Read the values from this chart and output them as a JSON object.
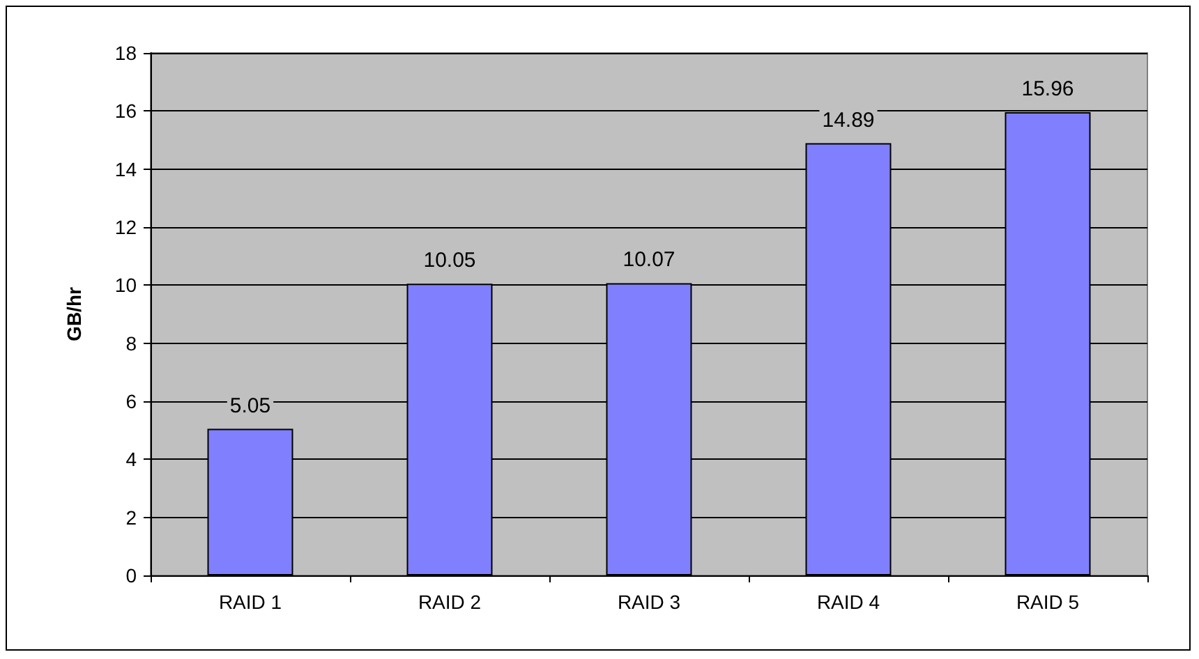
{
  "chart_data": {
    "type": "bar",
    "ylabel": "GB/hr",
    "categories": [
      "RAID 1",
      "RAID 2",
      "RAID 3",
      "RAID 4",
      "RAID 5"
    ],
    "values": [
      5.05,
      10.05,
      10.07,
      14.89,
      15.96
    ],
    "color": "#8080ff",
    "ylim": [
      0,
      18
    ],
    "yticks": [
      0,
      2,
      4,
      6,
      8,
      10,
      12,
      14,
      16,
      18
    ],
    "grid": "y",
    "data_labels": true
  }
}
